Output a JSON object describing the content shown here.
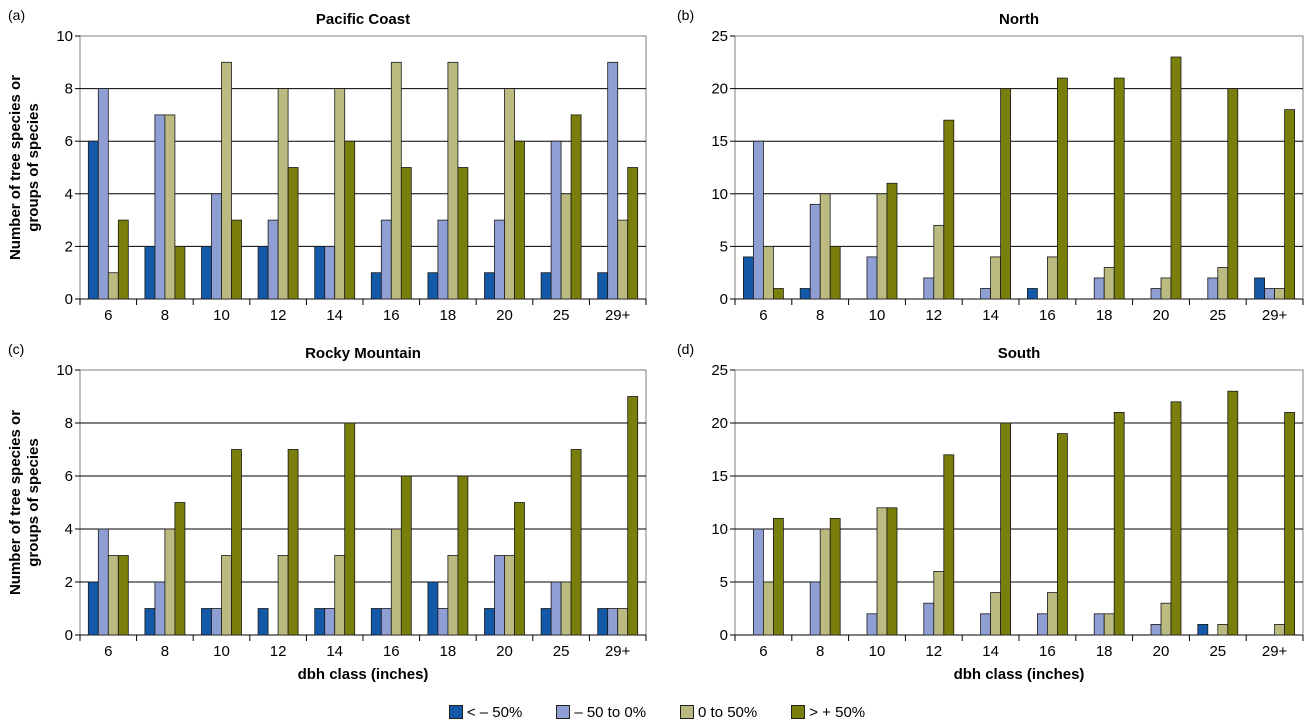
{
  "colors": [
    "#1458a8",
    "#8f9fd3",
    "#bbba80",
    "#7a7f0c"
  ],
  "legend": [
    "< – 50%",
    "– 50 to 0%",
    "0 to 50%",
    "> + 50%"
  ],
  "chart_data": [
    {
      "type": "bar",
      "panel_label": "(a)",
      "title": "Pacific Coast",
      "xlabel": "",
      "ylabel": "Number of tree species or groups of species",
      "ylim": [
        0,
        10
      ],
      "yticks": [
        0,
        2,
        4,
        6,
        8,
        10
      ],
      "categories": [
        "6",
        "8",
        "10",
        "12",
        "14",
        "16",
        "18",
        "20",
        "25",
        "29+"
      ],
      "series": [
        {
          "name": "< – 50%",
          "values": [
            6,
            2,
            2,
            2,
            2,
            1,
            1,
            1,
            1,
            1
          ]
        },
        {
          "name": "– 50 to 0%",
          "values": [
            8,
            7,
            4,
            3,
            2,
            3,
            3,
            3,
            6,
            9
          ]
        },
        {
          "name": "0 to 50%",
          "values": [
            1,
            7,
            9,
            8,
            8,
            9,
            9,
            8,
            4,
            3
          ]
        },
        {
          "name": "> + 50%",
          "values": [
            3,
            2,
            3,
            5,
            6,
            5,
            5,
            6,
            7,
            5
          ]
        }
      ]
    },
    {
      "type": "bar",
      "panel_label": "(b)",
      "title": "North",
      "xlabel": "",
      "ylabel": "",
      "ylim": [
        0,
        25
      ],
      "yticks": [
        0,
        5,
        10,
        15,
        20,
        25
      ],
      "categories": [
        "6",
        "8",
        "10",
        "12",
        "14",
        "16",
        "18",
        "20",
        "25",
        "29+"
      ],
      "series": [
        {
          "name": "< – 50%",
          "values": [
            4,
            1,
            0,
            0,
            0,
            1,
            0,
            0,
            0,
            2
          ]
        },
        {
          "name": "– 50 to 0%",
          "values": [
            15,
            9,
            4,
            2,
            1,
            0,
            2,
            1,
            2,
            1
          ]
        },
        {
          "name": "0 to 50%",
          "values": [
            5,
            10,
            10,
            7,
            4,
            4,
            3,
            2,
            3,
            1
          ]
        },
        {
          "name": "> + 50%",
          "values": [
            1,
            5,
            11,
            17,
            20,
            21,
            21,
            23,
            20,
            18
          ]
        }
      ]
    },
    {
      "type": "bar",
      "panel_label": "(c)",
      "title": "Rocky Mountain",
      "xlabel": "dbh class (inches)",
      "ylabel": "Number of tree species or groups of species",
      "ylim": [
        0,
        10
      ],
      "yticks": [
        0,
        2,
        4,
        6,
        8,
        10
      ],
      "categories": [
        "6",
        "8",
        "10",
        "12",
        "14",
        "16",
        "18",
        "20",
        "25",
        "29+"
      ],
      "series": [
        {
          "name": "< – 50%",
          "values": [
            2,
            1,
            1,
            1,
            1,
            1,
            2,
            1,
            1,
            1
          ]
        },
        {
          "name": "– 50 to 0%",
          "values": [
            4,
            2,
            1,
            0,
            1,
            1,
            1,
            3,
            2,
            1
          ]
        },
        {
          "name": "0 to 50%",
          "values": [
            3,
            4,
            3,
            3,
            3,
            4,
            3,
            3,
            2,
            1
          ]
        },
        {
          "name": "> + 50%",
          "values": [
            3,
            5,
            7,
            7,
            8,
            6,
            6,
            5,
            7,
            9
          ]
        }
      ]
    },
    {
      "type": "bar",
      "panel_label": "(d)",
      "title": "South",
      "xlabel": "dbh class (inches)",
      "ylabel": "",
      "ylim": [
        0,
        25
      ],
      "yticks": [
        0,
        5,
        10,
        15,
        20,
        25
      ],
      "categories": [
        "6",
        "8",
        "10",
        "12",
        "14",
        "16",
        "18",
        "20",
        "25",
        "29+"
      ],
      "series": [
        {
          "name": "< – 50%",
          "values": [
            0,
            0,
            0,
            0,
            0,
            0,
            0,
            0,
            1,
            0
          ]
        },
        {
          "name": "– 50 to 0%",
          "values": [
            10,
            5,
            2,
            3,
            2,
            2,
            2,
            1,
            0,
            0
          ]
        },
        {
          "name": "0 to 50%",
          "values": [
            5,
            10,
            12,
            6,
            4,
            4,
            2,
            3,
            1,
            1
          ]
        },
        {
          "name": "> + 50%",
          "values": [
            11,
            11,
            12,
            17,
            20,
            19,
            21,
            22,
            23,
            21
          ]
        }
      ]
    }
  ]
}
